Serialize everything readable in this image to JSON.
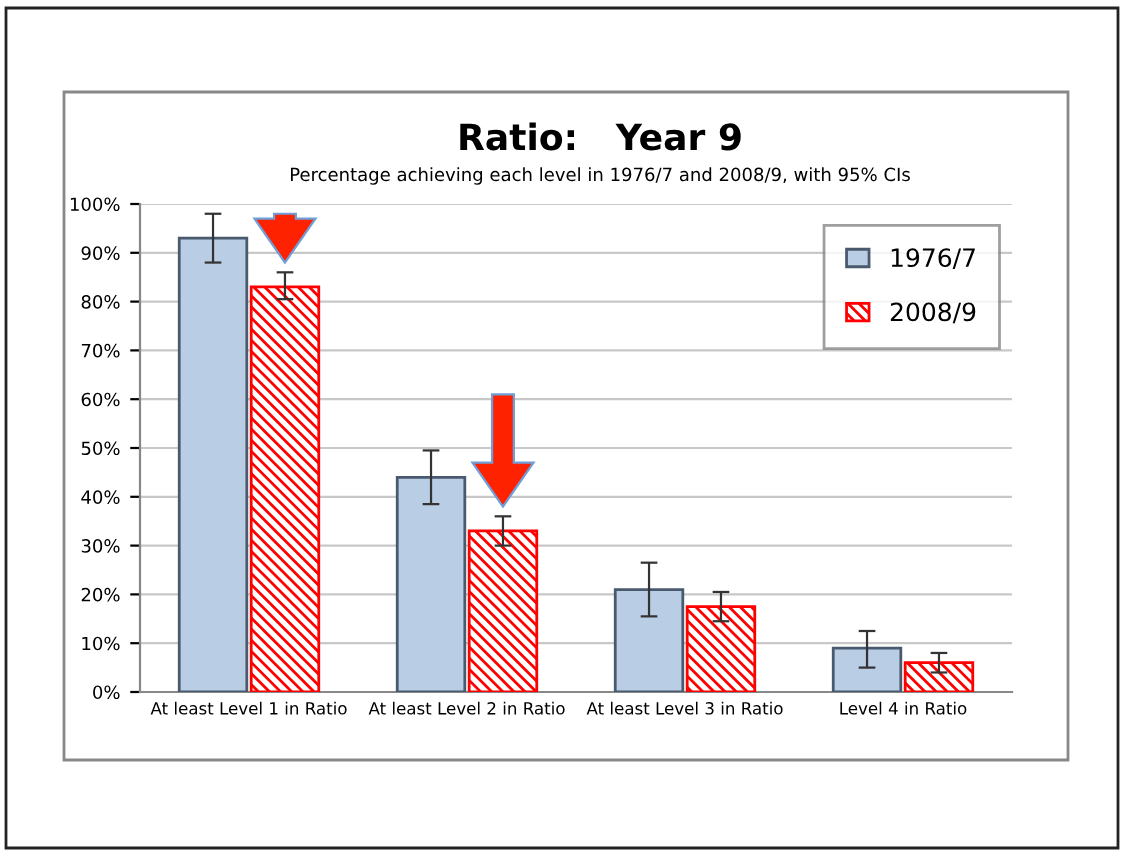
{
  "chart_data": {
    "type": "bar",
    "title": "Ratio:   Year 9",
    "subtitle": "Percentage achieving each level in 1976/7 and 2008/9, with 95% CIs",
    "categories": [
      "At least Level 1 in Ratio",
      "At least Level 2 in Ratio",
      "At least Level 3 in Ratio",
      "Level 4 in Ratio"
    ],
    "series": [
      {
        "name": "1976/7",
        "color": "#b9cde5",
        "values": [
          93,
          44,
          21,
          9
        ],
        "errors": [
          [
            88,
            98
          ],
          [
            38.5,
            49.5
          ],
          [
            15.5,
            26.5
          ],
          [
            5,
            12.5
          ]
        ]
      },
      {
        "name": "2008/9",
        "color": "#ff0000",
        "values": [
          83,
          33,
          17.5,
          6
        ],
        "errors": [
          [
            80.5,
            86
          ],
          [
            30,
            36
          ],
          [
            14.5,
            20.5
          ],
          [
            4,
            8
          ]
        ]
      }
    ],
    "ylim": [
      0,
      100
    ],
    "yticks": [
      {
        "value": 0,
        "label": "0%"
      },
      {
        "value": 10,
        "label": "10%"
      },
      {
        "value": 20,
        "label": "20%"
      },
      {
        "value": 30,
        "label": "30%"
      },
      {
        "value": 40,
        "label": "40%"
      },
      {
        "value": 50,
        "label": "50%"
      },
      {
        "value": 60,
        "label": "60%"
      },
      {
        "value": 70,
        "label": "70%"
      },
      {
        "value": 80,
        "label": "80%"
      },
      {
        "value": 90,
        "label": "90%"
      },
      {
        "value": 100,
        "label": "100%"
      }
    ],
    "grid": "y",
    "legend": "right"
  }
}
